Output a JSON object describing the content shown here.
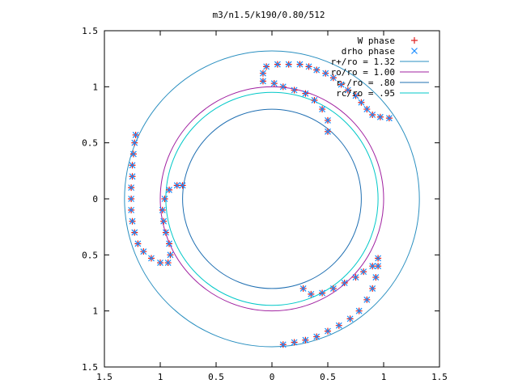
{
  "chart_data": {
    "type": "scatter",
    "title": "m3/n1.5/k190/0.80/512",
    "xlabel": "",
    "ylabel": "",
    "xlim": [
      -1.5,
      1.5
    ],
    "ylim": [
      -1.5,
      1.5
    ],
    "xticks": [
      -1.5,
      -1,
      -0.5,
      0,
      0.5,
      1,
      1.5
    ],
    "yticks": [
      -1.5,
      -1,
      -0.5,
      0,
      0.5,
      1,
      1.5
    ],
    "xtick_labels": [
      "1.5",
      "1",
      "0.5",
      "0",
      "0.5",
      "1",
      "1.5"
    ],
    "ytick_labels": [
      "1.5",
      "1",
      "0.5",
      "0",
      "0.5",
      "1",
      "1.5"
    ],
    "grid": false,
    "legend_position": "top-right",
    "circles": [
      {
        "name": "r+/ro = 1.32",
        "radius": 1.32,
        "color": "#2a8fc0"
      },
      {
        "name": "ro/ro = 1.00",
        "radius": 1.0,
        "color": "#a020a0"
      },
      {
        "name": "r-/ro = .80",
        "radius": 0.8,
        "color": "#1f6fb2"
      },
      {
        "name": "rc/ro = .95",
        "radius": 0.95,
        "color": "#00c8c8"
      }
    ],
    "series": [
      {
        "name": "W phase",
        "marker": "+",
        "color": "#e02020",
        "points": [
          [
            -1.22,
            0.57
          ],
          [
            -1.23,
            0.5
          ],
          [
            -1.24,
            0.4
          ],
          [
            -1.25,
            0.3
          ],
          [
            -1.25,
            0.2
          ],
          [
            -1.26,
            0.1
          ],
          [
            -1.26,
            0.0
          ],
          [
            -1.26,
            -0.1
          ],
          [
            -1.25,
            -0.2
          ],
          [
            -1.23,
            -0.3
          ],
          [
            -1.2,
            -0.4
          ],
          [
            -1.15,
            -0.47
          ],
          [
            -1.08,
            -0.53
          ],
          [
            -1.0,
            -0.57
          ],
          [
            -0.93,
            -0.57
          ],
          [
            -0.91,
            -0.5
          ],
          [
            -0.92,
            -0.4
          ],
          [
            -0.95,
            -0.3
          ],
          [
            -0.97,
            -0.2
          ],
          [
            -0.98,
            -0.1
          ],
          [
            -0.96,
            0.0
          ],
          [
            -0.92,
            0.08
          ],
          [
            -0.85,
            0.12
          ],
          [
            -0.8,
            0.12
          ],
          [
            -0.08,
            1.12
          ],
          [
            -0.05,
            1.18
          ],
          [
            0.05,
            1.2
          ],
          [
            0.15,
            1.2
          ],
          [
            0.25,
            1.2
          ],
          [
            0.33,
            1.18
          ],
          [
            0.4,
            1.15
          ],
          [
            0.48,
            1.12
          ],
          [
            0.55,
            1.08
          ],
          [
            0.62,
            1.02
          ],
          [
            0.68,
            0.97
          ],
          [
            0.75,
            0.92
          ],
          [
            0.8,
            0.86
          ],
          [
            0.85,
            0.8
          ],
          [
            0.9,
            0.75
          ],
          [
            0.97,
            0.73
          ],
          [
            1.05,
            0.72
          ],
          [
            -0.08,
            1.05
          ],
          [
            0.02,
            1.03
          ],
          [
            0.1,
            1.0
          ],
          [
            0.2,
            0.97
          ],
          [
            0.3,
            0.94
          ],
          [
            0.38,
            0.88
          ],
          [
            0.45,
            0.8
          ],
          [
            0.5,
            0.7
          ],
          [
            0.5,
            0.6
          ],
          [
            0.95,
            -0.53
          ],
          [
            0.9,
            -0.6
          ],
          [
            0.82,
            -0.65
          ],
          [
            0.75,
            -0.7
          ],
          [
            0.65,
            -0.75
          ],
          [
            0.55,
            -0.8
          ],
          [
            0.45,
            -0.84
          ],
          [
            0.35,
            -0.85
          ],
          [
            0.28,
            -0.8
          ],
          [
            0.95,
            -0.6
          ],
          [
            0.93,
            -0.7
          ],
          [
            0.9,
            -0.8
          ],
          [
            0.85,
            -0.9
          ],
          [
            0.78,
            -1.0
          ],
          [
            0.7,
            -1.07
          ],
          [
            0.6,
            -1.13
          ],
          [
            0.5,
            -1.18
          ],
          [
            0.4,
            -1.23
          ],
          [
            0.3,
            -1.26
          ],
          [
            0.2,
            -1.28
          ],
          [
            0.1,
            -1.3
          ]
        ]
      },
      {
        "name": "drho phase",
        "marker": "x",
        "color": "#1a8cff",
        "points": [
          [
            -1.22,
            0.57
          ],
          [
            -1.23,
            0.5
          ],
          [
            -1.24,
            0.4
          ],
          [
            -1.25,
            0.3
          ],
          [
            -1.25,
            0.2
          ],
          [
            -1.26,
            0.1
          ],
          [
            -1.26,
            0.0
          ],
          [
            -1.26,
            -0.1
          ],
          [
            -1.25,
            -0.2
          ],
          [
            -1.23,
            -0.3
          ],
          [
            -1.2,
            -0.4
          ],
          [
            -1.15,
            -0.47
          ],
          [
            -1.08,
            -0.53
          ],
          [
            -1.0,
            -0.57
          ],
          [
            -0.93,
            -0.57
          ],
          [
            -0.91,
            -0.5
          ],
          [
            -0.92,
            -0.4
          ],
          [
            -0.95,
            -0.3
          ],
          [
            -0.97,
            -0.2
          ],
          [
            -0.98,
            -0.1
          ],
          [
            -0.96,
            0.0
          ],
          [
            -0.92,
            0.08
          ],
          [
            -0.85,
            0.12
          ],
          [
            -0.8,
            0.12
          ],
          [
            -0.08,
            1.12
          ],
          [
            -0.05,
            1.18
          ],
          [
            0.05,
            1.2
          ],
          [
            0.15,
            1.2
          ],
          [
            0.25,
            1.2
          ],
          [
            0.33,
            1.18
          ],
          [
            0.4,
            1.15
          ],
          [
            0.48,
            1.12
          ],
          [
            0.55,
            1.08
          ],
          [
            0.62,
            1.02
          ],
          [
            0.68,
            0.97
          ],
          [
            0.75,
            0.92
          ],
          [
            0.8,
            0.86
          ],
          [
            0.85,
            0.8
          ],
          [
            0.9,
            0.75
          ],
          [
            0.97,
            0.73
          ],
          [
            1.05,
            0.72
          ],
          [
            -0.08,
            1.05
          ],
          [
            0.02,
            1.03
          ],
          [
            0.1,
            1.0
          ],
          [
            0.2,
            0.97
          ],
          [
            0.3,
            0.94
          ],
          [
            0.38,
            0.88
          ],
          [
            0.45,
            0.8
          ],
          [
            0.5,
            0.7
          ],
          [
            0.5,
            0.6
          ],
          [
            0.95,
            -0.53
          ],
          [
            0.9,
            -0.6
          ],
          [
            0.82,
            -0.65
          ],
          [
            0.75,
            -0.7
          ],
          [
            0.65,
            -0.75
          ],
          [
            0.55,
            -0.8
          ],
          [
            0.45,
            -0.84
          ],
          [
            0.35,
            -0.85
          ],
          [
            0.28,
            -0.8
          ],
          [
            0.95,
            -0.6
          ],
          [
            0.93,
            -0.7
          ],
          [
            0.9,
            -0.8
          ],
          [
            0.85,
            -0.9
          ],
          [
            0.78,
            -1.0
          ],
          [
            0.7,
            -1.07
          ],
          [
            0.6,
            -1.13
          ],
          [
            0.5,
            -1.18
          ],
          [
            0.4,
            -1.23
          ],
          [
            0.3,
            -1.26
          ],
          [
            0.2,
            -1.28
          ],
          [
            0.1,
            -1.3
          ]
        ]
      }
    ]
  }
}
